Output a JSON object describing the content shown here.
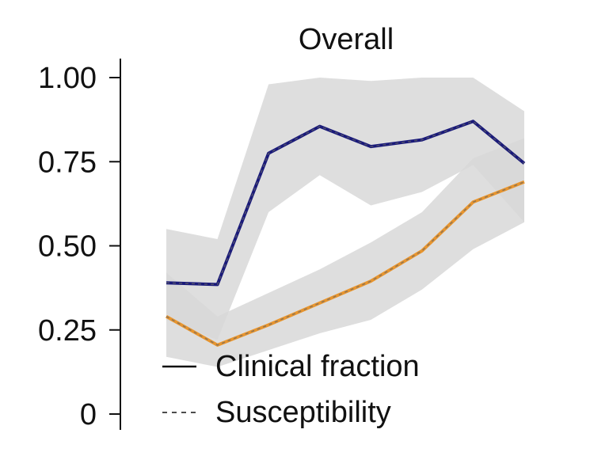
{
  "chart_data": {
    "type": "line",
    "title": "Overall",
    "xlabel": "",
    "ylabel": "",
    "ylim": [
      0,
      1
    ],
    "yticks": [
      {
        "value": 0,
        "label": "0"
      },
      {
        "value": 0.25,
        "label": "0.25"
      },
      {
        "value": 0.5,
        "label": "0.50"
      },
      {
        "value": 0.75,
        "label": "0.75"
      },
      {
        "value": 1,
        "label": "1.00"
      }
    ],
    "x": [
      1,
      2,
      3,
      4,
      5,
      6,
      7,
      8,
      9
    ],
    "xlim": [
      1,
      9
    ],
    "series": [
      {
        "name": "",
        "color": "#1a1a7a",
        "values": [
          0.39,
          0.385,
          0.775,
          0.855,
          0.795,
          0.815,
          0.87,
          0.745
        ],
        "x": [
          1,
          2,
          3,
          4,
          5,
          6,
          7,
          8
        ],
        "band_lower": [
          0.28,
          0.22,
          0.6,
          0.71,
          0.62,
          0.66,
          0.74,
          0.57
        ],
        "band_upper": [
          0.55,
          0.52,
          0.98,
          1.0,
          0.99,
          1.0,
          1.0,
          0.9
        ]
      },
      {
        "name": "",
        "color": "#e8952e",
        "values": [
          0.29,
          0.205,
          0.265,
          0.33,
          0.395,
          0.485,
          0.63,
          0.69
        ],
        "x": [
          1,
          2,
          3,
          4,
          5,
          6,
          7,
          8
        ],
        "band_lower": [
          0.17,
          0.14,
          0.19,
          0.24,
          0.28,
          0.37,
          0.49,
          0.57
        ],
        "band_upper": [
          0.42,
          0.29,
          0.36,
          0.43,
          0.51,
          0.6,
          0.76,
          0.82
        ]
      }
    ],
    "legend": {
      "position": "bottom-left",
      "entries": [
        {
          "label": "Clinical fraction",
          "style": "solid"
        },
        {
          "label": "Susceptibility",
          "style": "dashed"
        }
      ]
    }
  },
  "colors": {
    "band": "#d8d8d8",
    "band_overlap": "#b8b8b8",
    "axis": "#111111"
  }
}
